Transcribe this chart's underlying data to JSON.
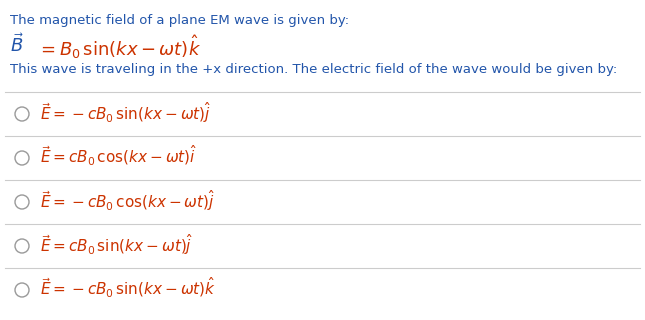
{
  "bg_color": "#ffffff",
  "blue": "#2255aa",
  "red": "#cc3300",
  "line1": "The magnetic field of a plane EM wave is given by:",
  "line3": "This wave is traveling in the +x direction. The electric field of the wave would be given by:",
  "options": [
    "$\\vec{E} = -cB_0\\,\\mathrm{sin}(kx - \\omega t)\\hat{j}$",
    "$\\vec{E} = cB_0\\,\\mathrm{cos}(kx - \\omega t)\\hat{i}$",
    "$\\vec{E} = -cB_0\\,\\mathrm{cos}(kx - \\omega t)\\hat{j}$",
    "$\\vec{E} = cB_0\\,\\mathrm{sin}(kx - \\omega t)\\hat{j}$",
    "$\\vec{E} = -cB_0\\,\\mathrm{sin}(kx - \\omega t)\\hat{k}$"
  ],
  "figsize": [
    6.45,
    3.2
  ],
  "dpi": 100
}
